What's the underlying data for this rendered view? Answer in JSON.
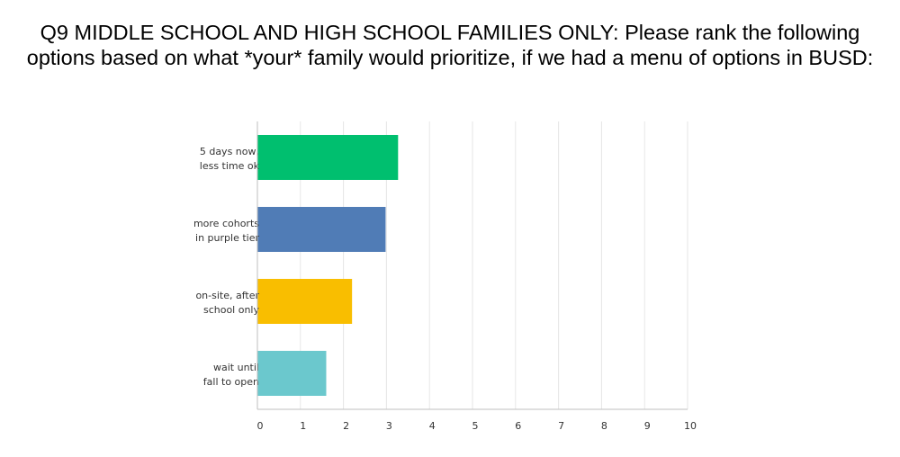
{
  "chart_data": {
    "type": "bar",
    "orientation": "horizontal",
    "title": {
      "line1": "Q9 MIDDLE SCHOOL AND HIGH SCHOOL FAMILIES ONLY: Please rank the following",
      "line2": "options based on what *your* family would prioritize, if we had a menu of options in BUSD:"
    },
    "categories": [
      [
        "5 days now,",
        "less time ok"
      ],
      [
        "more cohorts",
        "in purple tier"
      ],
      [
        "on-site, after",
        "school only"
      ],
      [
        "wait until",
        "fall to open"
      ]
    ],
    "values": [
      3.27,
      2.98,
      2.2,
      1.6
    ],
    "colors": [
      "#00bf6f",
      "#507cb6",
      "#f9be00",
      "#6bc8cd"
    ],
    "xlim": [
      0,
      10
    ],
    "xticks": [
      0,
      1,
      2,
      3,
      4,
      5,
      6,
      7,
      8,
      9,
      10
    ],
    "grid": true,
    "legend": "none"
  }
}
